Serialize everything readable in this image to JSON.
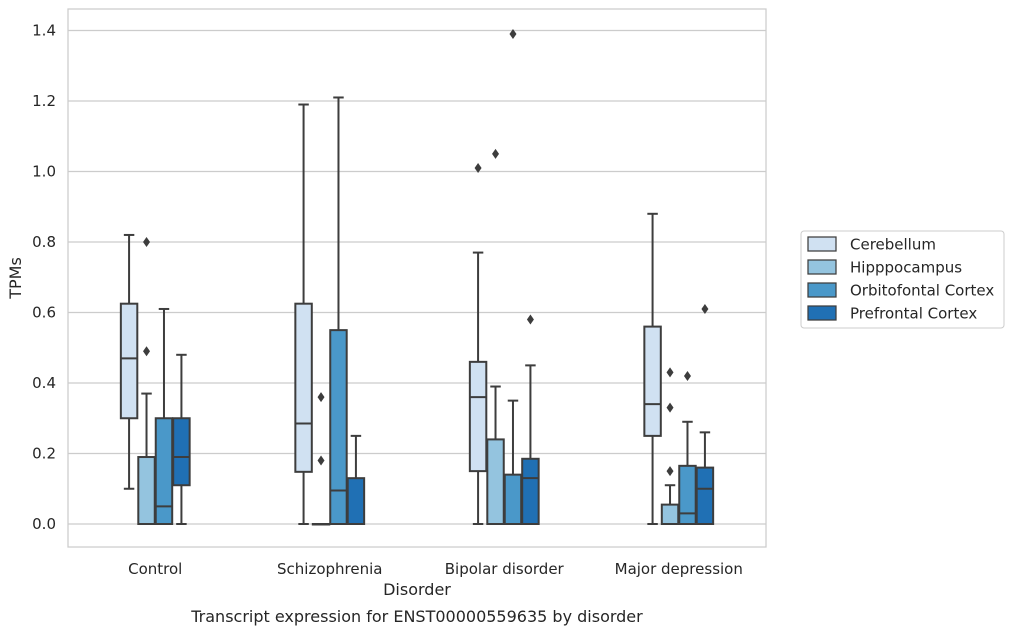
{
  "chart_data": {
    "type": "box",
    "xlabel": "Disorder",
    "ylabel": "TPMs",
    "caption": "Transcript expression for ENST00000559635 by disorder",
    "ylim": [
      -0.065,
      1.46
    ],
    "y_ticks": [
      "0.0",
      "0.2",
      "0.4",
      "0.6",
      "0.8",
      "1.0",
      "1.2",
      "1.4"
    ],
    "grid": "horizontal",
    "legend_position": "right",
    "categories": [
      "Control",
      "Schizophrenia",
      "Bipolar disorder",
      "Major depression"
    ],
    "series": [
      {
        "name": "Cerebellum",
        "color": "#d0e1f2",
        "boxes": [
          {
            "whisker_low": 0.1,
            "q1": 0.3,
            "median": 0.47,
            "q3": 0.625,
            "whisker_high": 0.82,
            "outliers": []
          },
          {
            "whisker_low": 0.0,
            "q1": 0.148,
            "median": 0.285,
            "q3": 0.625,
            "whisker_high": 1.19,
            "outliers": []
          },
          {
            "whisker_low": 0.0,
            "q1": 0.15,
            "median": 0.36,
            "q3": 0.46,
            "whisker_high": 0.77,
            "outliers": [
              1.01
            ]
          },
          {
            "whisker_low": 0.0,
            "q1": 0.25,
            "median": 0.34,
            "q3": 0.56,
            "whisker_high": 0.88,
            "outliers": []
          }
        ]
      },
      {
        "name": "Hipppocampus",
        "color": "#94c4df",
        "boxes": [
          {
            "whisker_low": 0.0,
            "q1": 0.0,
            "median": 0.0,
            "q3": 0.19,
            "whisker_high": 0.37,
            "outliers": [
              0.49,
              0.8
            ]
          },
          {
            "whisker_low": 0.0,
            "q1": 0.0,
            "median": 0.0,
            "q3": 0.0,
            "whisker_high": 0.0,
            "outliers": [
              0.18,
              0.36
            ]
          },
          {
            "whisker_low": 0.0,
            "q1": 0.0,
            "median": 0.0,
            "q3": 0.24,
            "whisker_high": 0.39,
            "outliers": [
              1.05
            ]
          },
          {
            "whisker_low": 0.0,
            "q1": 0.0,
            "median": 0.0,
            "q3": 0.055,
            "whisker_high": 0.11,
            "outliers": [
              0.15,
              0.33,
              0.43
            ]
          }
        ]
      },
      {
        "name": "Orbitofontal Cortex",
        "color": "#4a98c9",
        "boxes": [
          {
            "whisker_low": 0.0,
            "q1": 0.0,
            "median": 0.05,
            "q3": 0.3,
            "whisker_high": 0.61,
            "outliers": []
          },
          {
            "whisker_low": 0.0,
            "q1": 0.0,
            "median": 0.095,
            "q3": 0.55,
            "whisker_high": 1.21,
            "outliers": []
          },
          {
            "whisker_low": 0.0,
            "q1": 0.0,
            "median": 0.0,
            "q3": 0.14,
            "whisker_high": 0.35,
            "outliers": [
              1.39
            ]
          },
          {
            "whisker_low": 0.0,
            "q1": 0.0,
            "median": 0.03,
            "q3": 0.165,
            "whisker_high": 0.29,
            "outliers": [
              0.42
            ]
          }
        ]
      },
      {
        "name": "Prefrontal Cortex",
        "color": "#2070b4",
        "boxes": [
          {
            "whisker_low": 0.0,
            "q1": 0.11,
            "median": 0.19,
            "q3": 0.3,
            "whisker_high": 0.48,
            "outliers": []
          },
          {
            "whisker_low": 0.0,
            "q1": 0.0,
            "median": 0.0,
            "q3": 0.13,
            "whisker_high": 0.25,
            "outliers": []
          },
          {
            "whisker_low": 0.0,
            "q1": 0.0,
            "median": 0.13,
            "q3": 0.185,
            "whisker_high": 0.45,
            "outliers": [
              0.58
            ]
          },
          {
            "whisker_low": 0.0,
            "q1": 0.0,
            "median": 0.1,
            "q3": 0.16,
            "whisker_high": 0.26,
            "outliers": [
              0.61
            ]
          }
        ]
      }
    ]
  }
}
